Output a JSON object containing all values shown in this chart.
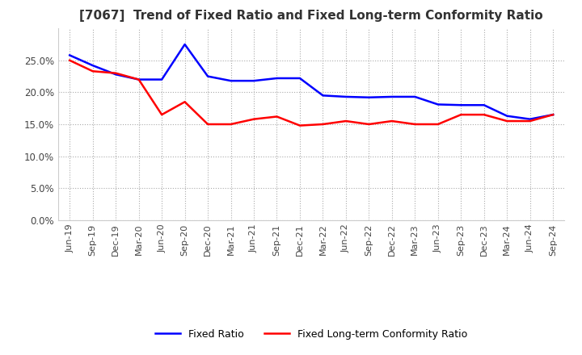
{
  "title": "[7067]  Trend of Fixed Ratio and Fixed Long-term Conformity Ratio",
  "x_labels": [
    "Jun-19",
    "Sep-19",
    "Dec-19",
    "Mar-20",
    "Jun-20",
    "Sep-20",
    "Dec-20",
    "Mar-21",
    "Jun-21",
    "Sep-21",
    "Dec-21",
    "Mar-22",
    "Jun-22",
    "Sep-22",
    "Dec-22",
    "Mar-23",
    "Jun-23",
    "Sep-23",
    "Dec-23",
    "Mar-24",
    "Jun-24",
    "Sep-24"
  ],
  "fixed_ratio": [
    25.8,
    24.2,
    22.8,
    22.0,
    22.0,
    27.5,
    22.5,
    21.8,
    21.8,
    22.2,
    22.2,
    19.5,
    19.3,
    19.2,
    19.3,
    19.3,
    18.1,
    18.0,
    18.0,
    16.3,
    15.8,
    16.5
  ],
  "fixed_lt_ratio": [
    25.0,
    23.3,
    23.0,
    22.0,
    16.5,
    18.5,
    15.0,
    15.0,
    15.8,
    16.2,
    14.8,
    15.0,
    15.5,
    15.0,
    15.5,
    15.0,
    15.0,
    16.5,
    16.5,
    15.5,
    15.5,
    16.5
  ],
  "line_color_fixed": "#0000ff",
  "line_color_lt": "#ff0000",
  "ylim": [
    0.0,
    30.0
  ],
  "yticks": [
    0.0,
    5.0,
    10.0,
    15.0,
    20.0,
    25.0
  ],
  "background_color": "#ffffff",
  "grid_color": "#aaaaaa",
  "legend_fixed": "Fixed Ratio",
  "legend_lt": "Fixed Long-term Conformity Ratio"
}
